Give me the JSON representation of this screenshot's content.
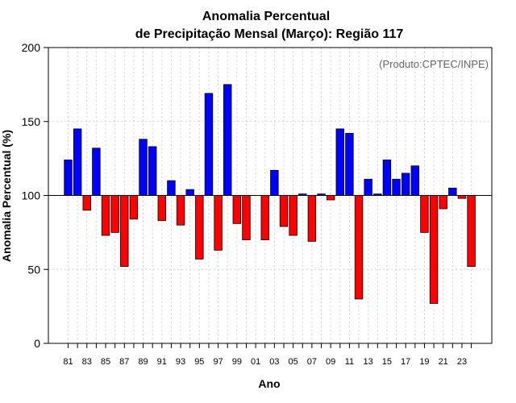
{
  "chart_data": {
    "type": "bar",
    "title_line1": "Anomalia Percentual",
    "title_line2": "de Precipitação Mensal (Março): Região 117",
    "xlabel": "Ano",
    "ylabel": "Anomalia Percentual (%)",
    "source_note": "(Produto:CPTEC/INPE)",
    "baseline": 100,
    "ylim": [
      0,
      200
    ],
    "yticks": [
      0,
      50,
      100,
      150,
      200
    ],
    "grid": true,
    "colors": {
      "above": "#0000ff",
      "below": "#ff0000",
      "edge": "#000000",
      "grid": "#d3d3d3"
    },
    "categories": [
      "81",
      "82",
      "83",
      "84",
      "85",
      "86",
      "87",
      "88",
      "89",
      "90",
      "91",
      "92",
      "93",
      "94",
      "95",
      "96",
      "97",
      "98",
      "99",
      "00",
      "01",
      "02",
      "03",
      "04",
      "05",
      "06",
      "07",
      "08",
      "09",
      "10",
      "11",
      "12",
      "13",
      "14",
      "15",
      "16",
      "17",
      "18",
      "19",
      "20",
      "21",
      "22",
      "23",
      "24"
    ],
    "tick_labels": [
      "81",
      "83",
      "85",
      "87",
      "89",
      "91",
      "93",
      "95",
      "97",
      "99",
      "01",
      "03",
      "05",
      "07",
      "09",
      "11",
      "13",
      "15",
      "17",
      "19",
      "21",
      "23"
    ],
    "values": [
      124,
      145,
      90,
      132,
      73,
      75,
      52,
      84,
      138,
      133,
      83,
      110,
      80,
      104,
      57,
      169,
      63,
      175,
      81,
      70,
      100,
      70,
      117,
      79,
      73,
      101,
      69,
      101,
      97,
      145,
      142,
      30,
      111,
      101,
      124,
      111,
      115,
      120,
      75,
      27,
      91,
      105,
      98,
      52
    ]
  }
}
